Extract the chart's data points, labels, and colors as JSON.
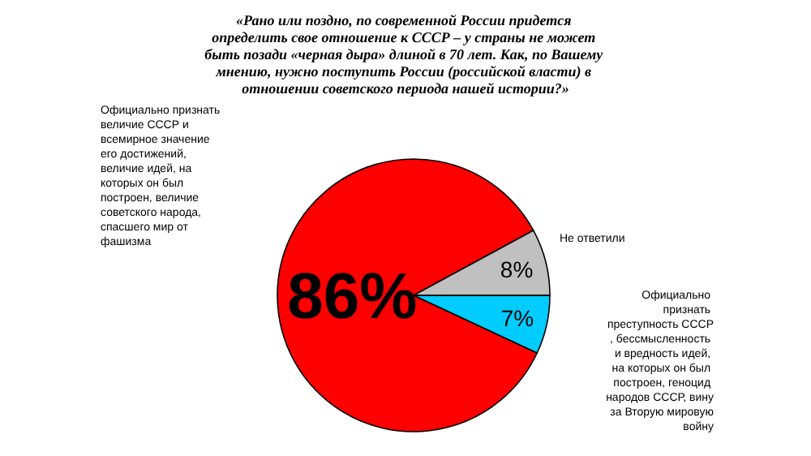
{
  "chart_data": {
    "type": "pie",
    "title": "«Рано или поздно, по современной России придется определить свое отношение к СССР – у страны не может быть позади «черная дыра» длиной в 70 лет. Как, по Вашему мнению, нужно поступить России (российской власти) в отношении советского периода нашей истории?»",
    "categories": [
      "Официально признать величие СССР и всемирное значение его достижений, величие идей, на которых он был построен, величие советского народа, спасшего мир от фашизма",
      "Не ответили",
      "Официально признать преступность СССР, бессмысленность и вредность идей, на которых он был построен, геноцид народов СССР, вину за Вторую мировую войну"
    ],
    "values": [
      86,
      8,
      7
    ],
    "colors": [
      "#ff0000",
      "#c0c0c0",
      "#00ccff"
    ],
    "value_labels": [
      "86%",
      "8%",
      "7%"
    ]
  }
}
